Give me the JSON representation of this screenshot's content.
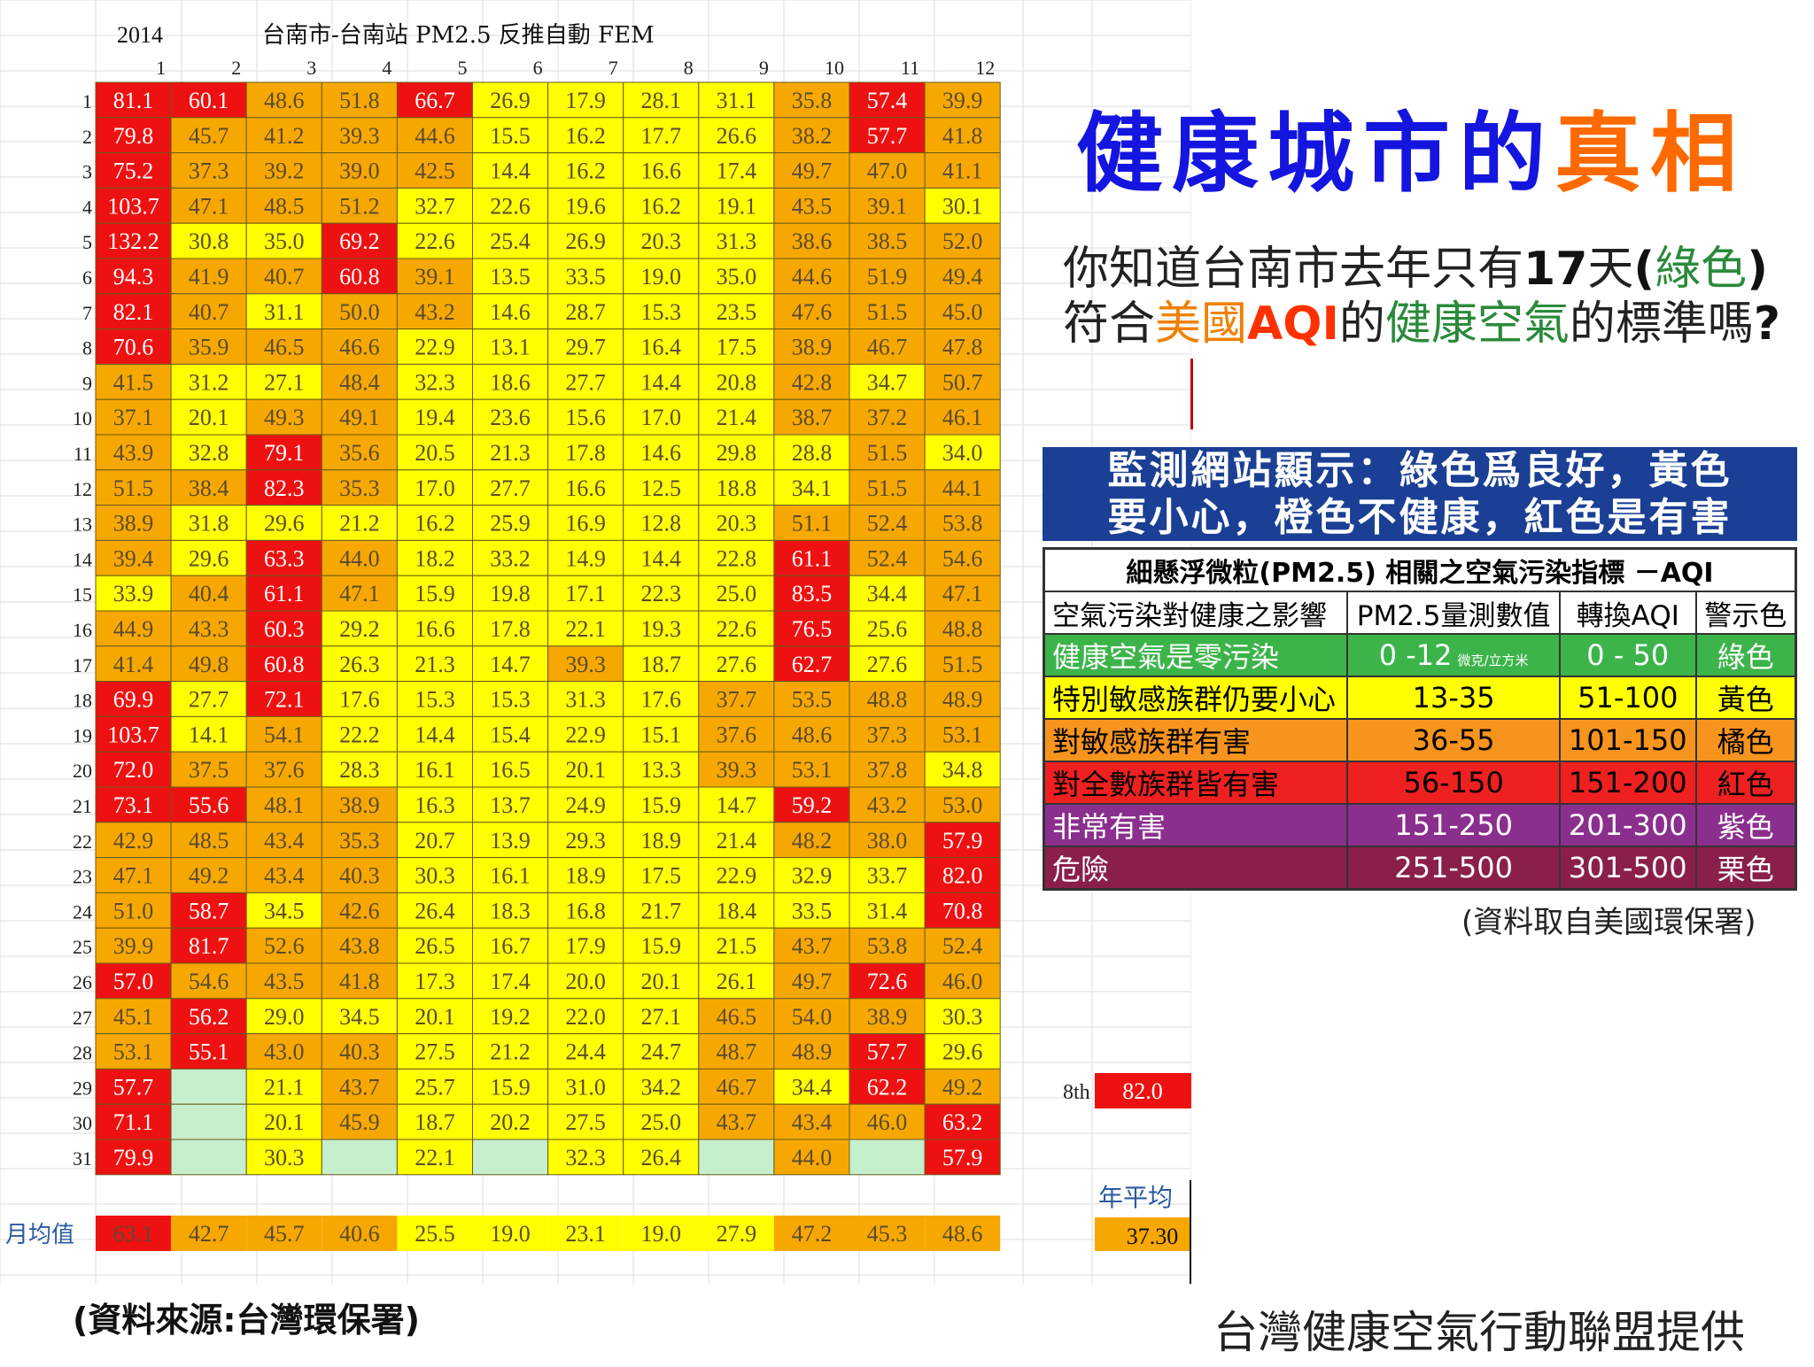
{
  "chart_data": {
    "type": "table",
    "year_label": "2014",
    "title": "台南市-台南站 PM2.5 反推自動 FEM",
    "columns": [
      "1",
      "2",
      "3",
      "4",
      "5",
      "6",
      "7",
      "8",
      "9",
      "10",
      "11",
      "12"
    ],
    "rows": [
      "1",
      "2",
      "3",
      "4",
      "5",
      "6",
      "7",
      "8",
      "9",
      "10",
      "11",
      "12",
      "13",
      "14",
      "15",
      "16",
      "17",
      "18",
      "19",
      "20",
      "21",
      "22",
      "23",
      "24",
      "25",
      "26",
      "27",
      "28",
      "29",
      "30",
      "31"
    ],
    "values": [
      [
        81.1,
        60.1,
        48.6,
        51.8,
        66.7,
        26.9,
        17.9,
        28.1,
        31.1,
        35.8,
        57.4,
        39.9
      ],
      [
        79.8,
        45.7,
        41.2,
        39.3,
        44.6,
        15.5,
        16.2,
        17.7,
        26.6,
        38.2,
        57.7,
        41.8
      ],
      [
        75.2,
        37.3,
        39.2,
        39.0,
        42.5,
        14.4,
        16.2,
        16.6,
        17.4,
        49.7,
        47.0,
        41.1
      ],
      [
        103.7,
        47.1,
        48.5,
        51.2,
        32.7,
        22.6,
        19.6,
        16.2,
        19.1,
        43.5,
        39.1,
        30.1
      ],
      [
        132.2,
        30.8,
        35.0,
        69.2,
        22.6,
        25.4,
        26.9,
        20.3,
        31.3,
        38.6,
        38.5,
        52.0
      ],
      [
        94.3,
        41.9,
        40.7,
        60.8,
        39.1,
        13.5,
        33.5,
        19.0,
        35.0,
        44.6,
        51.9,
        49.4
      ],
      [
        82.1,
        40.7,
        31.1,
        50.0,
        43.2,
        14.6,
        28.7,
        15.3,
        23.5,
        47.6,
        51.5,
        45.0
      ],
      [
        70.6,
        35.9,
        46.5,
        46.6,
        22.9,
        13.1,
        29.7,
        16.4,
        17.5,
        38.9,
        46.7,
        47.8
      ],
      [
        41.5,
        31.2,
        27.1,
        48.4,
        32.3,
        18.6,
        27.7,
        14.4,
        20.8,
        42.8,
        34.7,
        50.7
      ],
      [
        37.1,
        20.1,
        49.3,
        49.1,
        19.4,
        23.6,
        15.6,
        17.0,
        21.4,
        38.7,
        37.2,
        46.1
      ],
      [
        43.9,
        32.8,
        79.1,
        35.6,
        20.5,
        21.3,
        17.8,
        14.6,
        29.8,
        28.8,
        51.5,
        34.0
      ],
      [
        51.5,
        38.4,
        82.3,
        35.3,
        17.0,
        27.7,
        16.6,
        12.5,
        18.8,
        34.1,
        51.5,
        44.1
      ],
      [
        38.9,
        31.8,
        29.6,
        21.2,
        16.2,
        25.9,
        16.9,
        12.8,
        20.3,
        51.1,
        52.4,
        53.8
      ],
      [
        39.4,
        29.6,
        63.3,
        44.0,
        18.2,
        33.2,
        14.9,
        14.4,
        22.8,
        61.1,
        52.4,
        54.6
      ],
      [
        33.9,
        40.4,
        61.1,
        47.1,
        15.9,
        19.8,
        17.1,
        22.3,
        25.0,
        83.5,
        34.4,
        47.1
      ],
      [
        44.9,
        43.3,
        60.3,
        29.2,
        16.6,
        17.8,
        22.1,
        19.3,
        22.6,
        76.5,
        25.6,
        48.8
      ],
      [
        41.4,
        49.8,
        60.8,
        26.3,
        21.3,
        14.7,
        39.3,
        18.7,
        27.6,
        62.7,
        27.6,
        51.5
      ],
      [
        69.9,
        27.7,
        72.1,
        17.6,
        15.3,
        15.3,
        31.3,
        17.6,
        37.7,
        53.5,
        48.8,
        48.9
      ],
      [
        103.7,
        14.1,
        54.1,
        22.2,
        14.4,
        15.4,
        22.9,
        15.1,
        37.6,
        48.6,
        37.3,
        53.1
      ],
      [
        72.0,
        37.5,
        37.6,
        28.3,
        16.1,
        16.5,
        20.1,
        13.3,
        39.3,
        53.1,
        37.8,
        34.8
      ],
      [
        73.1,
        55.6,
        48.1,
        38.9,
        16.3,
        13.7,
        24.9,
        15.9,
        14.7,
        59.2,
        43.2,
        53.0
      ],
      [
        42.9,
        48.5,
        43.4,
        35.3,
        20.7,
        13.9,
        29.3,
        18.9,
        21.4,
        48.2,
        38.0,
        57.9
      ],
      [
        47.1,
        49.2,
        43.4,
        40.3,
        30.3,
        16.1,
        18.9,
        17.5,
        22.9,
        32.9,
        33.7,
        82.0
      ],
      [
        51.0,
        58.7,
        34.5,
        42.6,
        26.4,
        18.3,
        16.8,
        21.7,
        18.4,
        33.5,
        31.4,
        70.8
      ],
      [
        39.9,
        81.7,
        52.6,
        43.8,
        26.5,
        16.7,
        17.9,
        15.9,
        21.5,
        43.7,
        53.8,
        52.4
      ],
      [
        57.0,
        54.6,
        43.5,
        41.8,
        17.3,
        17.4,
        20.0,
        20.1,
        26.1,
        49.7,
        72.6,
        46.0
      ],
      [
        45.1,
        56.2,
        29.0,
        34.5,
        20.1,
        19.2,
        22.0,
        27.1,
        46.5,
        54.0,
        38.9,
        30.3
      ],
      [
        53.1,
        55.1,
        43.0,
        40.3,
        27.5,
        21.2,
        24.4,
        24.7,
        48.7,
        48.9,
        57.7,
        29.6
      ],
      [
        57.7,
        null,
        21.1,
        43.7,
        25.7,
        15.9,
        31.0,
        34.2,
        46.7,
        34.4,
        62.2,
        49.2
      ],
      [
        71.1,
        null,
        20.1,
        45.9,
        18.7,
        20.2,
        27.5,
        25.0,
        43.7,
        43.4,
        46.0,
        63.2
      ],
      [
        79.9,
        null,
        30.3,
        null,
        22.1,
        null,
        32.3,
        26.4,
        null,
        44.0,
        null,
        57.9
      ]
    ],
    "monthly_avg_label": "月均值",
    "monthly_avg": [
      63.1,
      42.7,
      45.7,
      40.6,
      25.5,
      19.0,
      23.1,
      19.0,
      27.9,
      47.2,
      45.3,
      48.6
    ],
    "annual_avg_label": "年平均",
    "annual_avg": "37.30",
    "rank_label": "8th",
    "rank_value": "82.0",
    "colors": {
      "green": "#1faa3c",
      "yellow": "#ffff00",
      "orange": "#f7a800",
      "red": "#ee1111",
      "empty": "#c6efce"
    }
  },
  "headline": {
    "part1": "健康城市的",
    "part2": "真相"
  },
  "question": {
    "line1": [
      "你知道台南市去年只有",
      "17",
      "天",
      "(",
      "綠色",
      ")"
    ],
    "line2": [
      "符合",
      "美國",
      "AQI",
      "的",
      "健康空氣",
      "的標準嗎",
      "?"
    ]
  },
  "banner": {
    "line1": "監測網站顯示：綠色爲良好，黃色",
    "line2": "要小心，橙色不健康，紅色是有害"
  },
  "aqi_table": {
    "title": "細懸浮微粒(PM2.5) 相關之空氣污染指標 －AQI",
    "headers": [
      "空氣污染對健康之影響",
      "PM2.5量測數值",
      "轉換AQI",
      "警示色"
    ],
    "rows": [
      {
        "effect": "健康空氣是零污染",
        "pm": "0 -12",
        "unit": "微克/立方米",
        "aqi": "0 - 50",
        "color": "綠色",
        "bg": "#3cb44a",
        "fg": "#ffffff"
      },
      {
        "effect": "特別敏感族群仍要小心",
        "pm": "13-35",
        "unit": "",
        "aqi": "51-100",
        "color": "黃色",
        "bg": "#ffff00",
        "fg": "#000000"
      },
      {
        "effect": "對敏感族群有害",
        "pm": "36-55",
        "unit": "",
        "aqi": "101-150",
        "color": "橘色",
        "bg": "#f7941d",
        "fg": "#000000"
      },
      {
        "effect": "對全數族群皆有害",
        "pm": "56-150",
        "unit": "",
        "aqi": "151-200",
        "color": "紅色",
        "bg": "#ee2020",
        "fg": "#000000"
      },
      {
        "effect": "非常有害",
        "pm": "151-250",
        "unit": "",
        "aqi": "201-300",
        "color": "紫色",
        "bg": "#8b2f8f",
        "fg": "#ffffff"
      },
      {
        "effect": "危險",
        "pm": "251-500",
        "unit": "",
        "aqi": "301-500",
        "color": "栗色",
        "bg": "#8a1f4c",
        "fg": "#ffffff"
      }
    ]
  },
  "aqi_source": "(資料取自美國環保署)",
  "data_source": "(資料來源:台灣環保署)",
  "provided_by": "台灣健康空氣行動聯盟提供"
}
